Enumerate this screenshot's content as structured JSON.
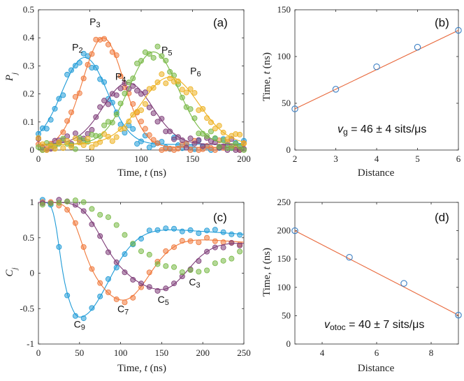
{
  "colors": {
    "blue": "#1f9bd7",
    "orange": "#f0783a",
    "green": "#77b843",
    "purple": "#7e3d78",
    "yellow": "#edb120",
    "line_red": "#e8683b",
    "marker_blue": "#3b7fc4"
  },
  "chart_data": [
    {
      "id": "a",
      "panel_label": "(a)",
      "type": "scatter",
      "xlabel_prefix": "Time, ",
      "xlabel_var": "t",
      "xlabel_suffix": " (ns)",
      "ylabel_var": "P",
      "ylabel_sub": "j",
      "xlim": [
        0,
        200
      ],
      "ylim": [
        0,
        0.5
      ],
      "xticks": [
        "0",
        "50",
        "100",
        "150",
        "200"
      ],
      "yticks": [
        "0",
        "0.1",
        "0.2",
        "0.3",
        "0.4",
        "0.5"
      ],
      "series": [
        {
          "name": "P2",
          "label": "P",
          "sub": "2",
          "color": "blue",
          "peak_t": 45,
          "peak": 0.33,
          "width": 22,
          "base": 0.02,
          "label_x": 38,
          "label_y": 0.355
        },
        {
          "name": "P3",
          "label": "P",
          "sub": "3",
          "color": "orange",
          "peak_t": 63,
          "peak": 0.4,
          "width": 20,
          "base": 0.01,
          "label_x": 55,
          "label_y": 0.445
        },
        {
          "name": "P4",
          "label": "P",
          "sub": "4",
          "color": "purple",
          "peak_t": 87,
          "peak": 0.24,
          "width": 24,
          "base": 0.02,
          "label_x": 80,
          "label_y": 0.25
        },
        {
          "name": "P5",
          "label": "P",
          "sub": "5",
          "color": "green",
          "peak_t": 112,
          "peak": 0.35,
          "width": 24,
          "base": 0.02,
          "label_x": 125,
          "label_y": 0.345
        },
        {
          "name": "P6",
          "label": "P",
          "sub": "6",
          "color": "yellow",
          "peak_t": 128,
          "peak": 0.26,
          "width": 28,
          "base": 0.02,
          "label_x": 153,
          "label_y": 0.27
        }
      ]
    },
    {
      "id": "b",
      "panel_label": "(b)",
      "type": "line",
      "xlabel": "Distance",
      "ylabel_prefix": "Time, ",
      "ylabel_var": "t",
      "ylabel_suffix": " (ns)",
      "xlim": [
        2,
        6
      ],
      "ylim": [
        0,
        150
      ],
      "xticks": [
        "2",
        "3",
        "4",
        "5",
        "6"
      ],
      "yticks": [
        "0",
        "50",
        "100",
        "150"
      ],
      "x": [
        2,
        3,
        4,
        5,
        6
      ],
      "y": [
        44,
        65,
        89,
        110,
        128
      ],
      "fit": [
        [
          2,
          44
        ],
        [
          6,
          128
        ]
      ],
      "annotation": {
        "var": "v",
        "sub": "g",
        "text": " = 46 ± 4 sits/μs"
      }
    },
    {
      "id": "c",
      "panel_label": "(c)",
      "type": "scatter",
      "xlabel_prefix": "Time, ",
      "xlabel_var": "t",
      "xlabel_suffix": " (ns)",
      "ylabel_var": "C",
      "ylabel_sub": "j",
      "xlim": [
        0,
        250
      ],
      "ylim": [
        -1,
        1
      ],
      "xticks": [
        "0",
        "50",
        "100",
        "150",
        "200",
        "250"
      ],
      "yticks": [
        "-1",
        "-0.5",
        "0",
        "0.5",
        "1"
      ],
      "series": [
        {
          "name": "C9",
          "label": "C",
          "sub": "9",
          "color": "blue",
          "tmin": 50,
          "depth": -0.62,
          "width": 20,
          "recover": 0.55,
          "label_x": 50,
          "label_y": -0.77
        },
        {
          "name": "C7",
          "label": "C",
          "sub": "7",
          "color": "orange",
          "tmin": 103,
          "depth": -0.38,
          "width": 18,
          "recover": 0.4,
          "label_x": 103,
          "label_y": -0.55
        },
        {
          "name": "C5",
          "label": "C",
          "sub": "5",
          "color": "purple",
          "tmin": 150,
          "depth": -0.23,
          "width": 18,
          "recover": 0.35,
          "label_x": 152,
          "label_y": -0.42
        },
        {
          "name": "C3",
          "label": "C",
          "sub": "3",
          "color": "green",
          "tmin": 192,
          "depth": 0.03,
          "width": 20,
          "recover": 0.3,
          "label_x": 190,
          "label_y": -0.17
        }
      ]
    },
    {
      "id": "d",
      "panel_label": "(d)",
      "type": "line",
      "xlabel": "Distance",
      "ylabel_prefix": "Time, ",
      "ylabel_var": "t",
      "ylabel_suffix": " (ns)",
      "xlim": [
        3,
        9
      ],
      "ylim": [
        0,
        250
      ],
      "xticks": [
        "4",
        "6",
        "8"
      ],
      "xtick_vals": [
        4,
        6,
        8
      ],
      "yticks": [
        "0",
        "50",
        "100",
        "150",
        "200",
        "250"
      ],
      "x": [
        3,
        5,
        7,
        9
      ],
      "y": [
        200,
        153,
        107,
        51
      ],
      "fit": [
        [
          3,
          200
        ],
        [
          9,
          51
        ]
      ],
      "annotation": {
        "var": "v",
        "sub": "otoc",
        "text": " = 40 ± 7 sits/μs"
      }
    }
  ]
}
